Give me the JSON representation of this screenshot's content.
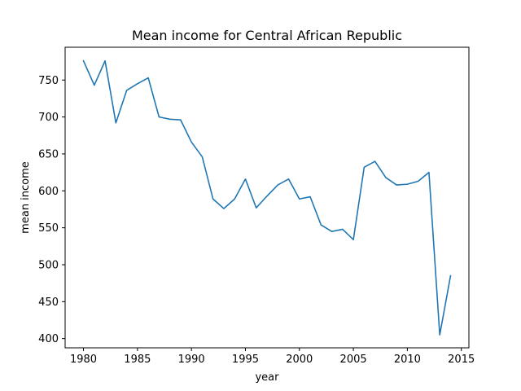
{
  "chart_data": {
    "type": "line",
    "title": "Mean income for Central African Republic",
    "xlabel": "year",
    "ylabel": "mean income",
    "xlim": [
      1978.3,
      2015.7
    ],
    "ylim": [
      387.5,
      794.4
    ],
    "xticks": [
      1980,
      1985,
      1990,
      1995,
      2000,
      2005,
      2010,
      2015
    ],
    "yticks": [
      400,
      450,
      500,
      550,
      600,
      650,
      700,
      750
    ],
    "grid": false,
    "series": [
      {
        "color": "#1f77b4",
        "x": [
          1980,
          1981,
          1982,
          1983,
          1984,
          1985,
          1986,
          1987,
          1988,
          1989,
          1990,
          1991,
          1992,
          1993,
          1994,
          1995,
          1996,
          1997,
          1998,
          1999,
          2000,
          2001,
          2002,
          2003,
          2004,
          2005,
          2006,
          2007,
          2008,
          2009,
          2010,
          2011,
          2012,
          2013,
          2014
        ],
        "y": [
          776,
          743,
          776,
          692,
          736,
          745,
          753,
          700,
          697,
          696,
          666,
          646,
          589,
          576,
          589,
          616,
          577,
          593,
          608,
          616,
          589,
          592,
          554,
          545,
          548,
          534,
          632,
          640,
          618,
          608,
          609,
          613,
          625,
          405,
          485
        ]
      }
    ]
  }
}
